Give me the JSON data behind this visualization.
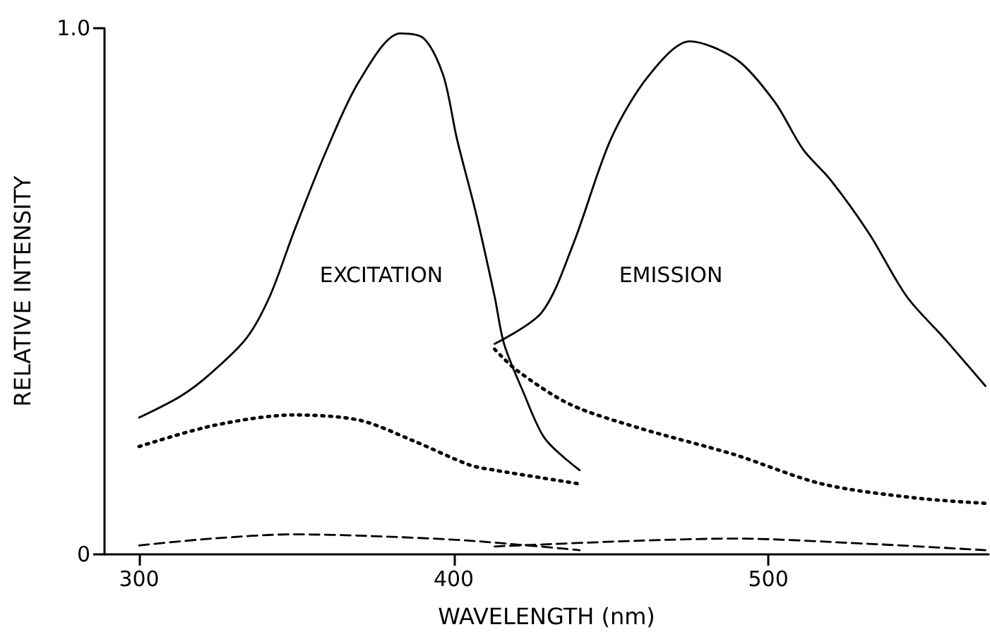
{
  "chart_data": {
    "type": "line",
    "xlabel": "WAVELENGTH (nm)",
    "ylabel": "RELATIVE INTENSITY",
    "xlim": [
      289,
      570
    ],
    "xticks": [
      300,
      400,
      500
    ],
    "ylim": [
      0,
      1
    ],
    "yticks": [
      0,
      {
        "value": 1,
        "label": "1.0"
      }
    ],
    "grid": false,
    "marker": "none",
    "series": [
      {
        "color": "#000000",
        "line_style": "solid",
        "x": [
          300,
          313,
          322,
          334,
          341.5,
          349,
          359,
          370,
          383,
          390.6,
          396.7,
          401,
          407,
          413,
          416,
          422,
          429,
          440
        ],
        "values": [
          0.26,
          0.3,
          0.34,
          0.41,
          0.49,
          0.61,
          0.76,
          0.9,
          0.99,
          0.98,
          0.91,
          0.79,
          0.65,
          0.49,
          0.4,
          0.31,
          0.22,
          0.16
        ]
      },
      {
        "color": "#000000",
        "line_style": "dotted",
        "x": [
          300,
          323.7,
          349,
          370,
          387.5,
          405,
          413,
          440
        ],
        "values": [
          0.205,
          0.245,
          0.265,
          0.255,
          0.215,
          0.17,
          0.16,
          0.134
        ]
      },
      {
        "color": "#000000",
        "line_style": "dashed",
        "x": [
          300,
          323,
          349,
          373,
          405,
          440
        ],
        "values": [
          0.017,
          0.03,
          0.038,
          0.035,
          0.026,
          0.008
        ]
      },
      {
        "color": "#000000",
        "line_style": "solid",
        "x": [
          413,
          428,
          438,
          450,
          462,
          475,
          490,
          502,
          511,
          520,
          532,
          544,
          556,
          569
        ],
        "values": [
          0.4,
          0.46,
          0.59,
          0.79,
          0.91,
          0.975,
          0.94,
          0.86,
          0.77,
          0.71,
          0.61,
          0.49,
          0.41,
          0.32
        ]
      },
      {
        "color": "#000000",
        "line_style": "dotted",
        "x": [
          413,
          420,
          437,
          459,
          489,
          517,
          547,
          569
        ],
        "values": [
          0.39,
          0.35,
          0.285,
          0.24,
          0.19,
          0.134,
          0.107,
          0.097
        ]
      },
      {
        "color": "#000000",
        "line_style": "dashed",
        "x": [
          413,
          459,
          489,
          532,
          569
        ],
        "values": [
          0.015,
          0.026,
          0.03,
          0.02,
          0.008
        ]
      }
    ],
    "annotations": [
      "EXCITATION",
      "EMISSION"
    ]
  }
}
